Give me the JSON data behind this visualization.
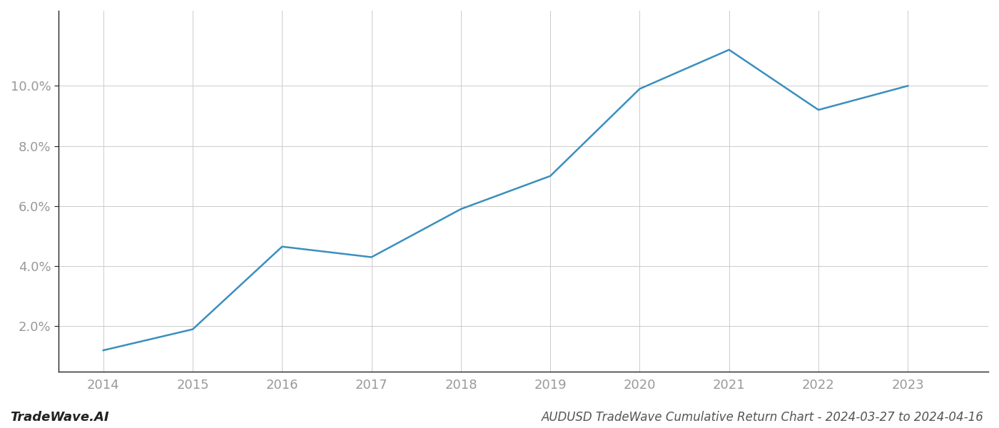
{
  "x": [
    2014,
    2015,
    2016,
    2017,
    2018,
    2019,
    2020,
    2021,
    2022,
    2023
  ],
  "y": [
    1.2,
    1.9,
    4.65,
    4.3,
    5.9,
    7.0,
    9.9,
    11.2,
    9.2,
    10.0
  ],
  "line_color": "#3a8fbe",
  "line_width": 1.8,
  "title": "AUDUSD TradeWave Cumulative Return Chart - 2024-03-27 to 2024-04-16",
  "watermark": "TradeWave.AI",
  "background_color": "#ffffff",
  "grid_color": "#cccccc",
  "xlim": [
    2013.5,
    2023.9
  ],
  "ylim": [
    0.5,
    12.5
  ],
  "xticks": [
    2014,
    2015,
    2016,
    2017,
    2018,
    2019,
    2020,
    2021,
    2022,
    2023
  ],
  "yticks": [
    2.0,
    4.0,
    6.0,
    8.0,
    10.0
  ],
  "tick_label_color": "#999999",
  "spine_color": "#222222",
  "title_color": "#555555",
  "title_fontsize": 12,
  "watermark_fontsize": 13,
  "axis_label_fontsize": 13
}
